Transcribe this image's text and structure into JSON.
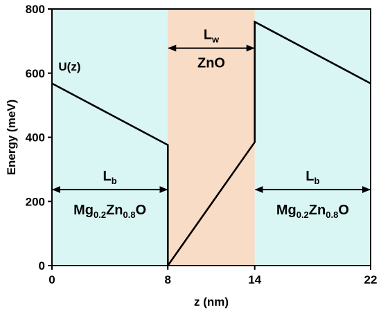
{
  "chart_data": {
    "type": "line",
    "xlabel": "z (nm)",
    "ylabel": "Energy (meV)",
    "xlim": [
      0,
      22
    ],
    "ylim": [
      0,
      800
    ],
    "x_ticks": [
      0,
      8,
      14,
      22
    ],
    "x_tick_labels": [
      "0",
      "8",
      "14",
      "22"
    ],
    "y_ticks": [
      0,
      200,
      400,
      600,
      800
    ],
    "y_tick_labels": [
      "0",
      "200",
      "400",
      "600",
      "800"
    ],
    "grid": false,
    "regions": [
      {
        "x_start": 0,
        "x_end": 8,
        "color": "#d9f5f4",
        "material": {
          "base": "Mg",
          "parts": [
            {
              "sub": "0.2"
            },
            {
              "text": "Zn"
            },
            {
              "sub": "0.8"
            },
            {
              "text": "O"
            }
          ]
        }
      },
      {
        "x_start": 8,
        "x_end": 14,
        "color": "#f8dcc6",
        "material": {
          "base": "ZnO",
          "parts": []
        }
      },
      {
        "x_start": 14,
        "x_end": 22,
        "color": "#d9f5f4",
        "material": {
          "base": "Mg",
          "parts": [
            {
              "sub": "0.2"
            },
            {
              "text": "Zn"
            },
            {
              "sub": "0.8"
            },
            {
              "text": "O"
            }
          ]
        }
      }
    ],
    "series": [
      {
        "label": "U(z)",
        "color": "#000000",
        "points": [
          [
            0,
            568
          ],
          [
            8,
            376
          ],
          [
            8,
            0
          ],
          [
            14,
            385
          ],
          [
            14,
            760
          ],
          [
            22,
            568
          ]
        ]
      }
    ],
    "annotations": [
      {
        "kind": "width-arrow",
        "x_start": 0,
        "x_end": 8,
        "y": 237,
        "base": "L",
        "sub": "b"
      },
      {
        "kind": "width-arrow",
        "x_start": 8,
        "x_end": 14,
        "y": 678,
        "base": "L",
        "sub": "w"
      },
      {
        "kind": "width-arrow",
        "x_start": 14,
        "x_end": 22,
        "y": 237,
        "base": "L",
        "sub": "b"
      }
    ],
    "series_label": {
      "text": "U(z)",
      "x": 0.45,
      "y": 608
    }
  }
}
